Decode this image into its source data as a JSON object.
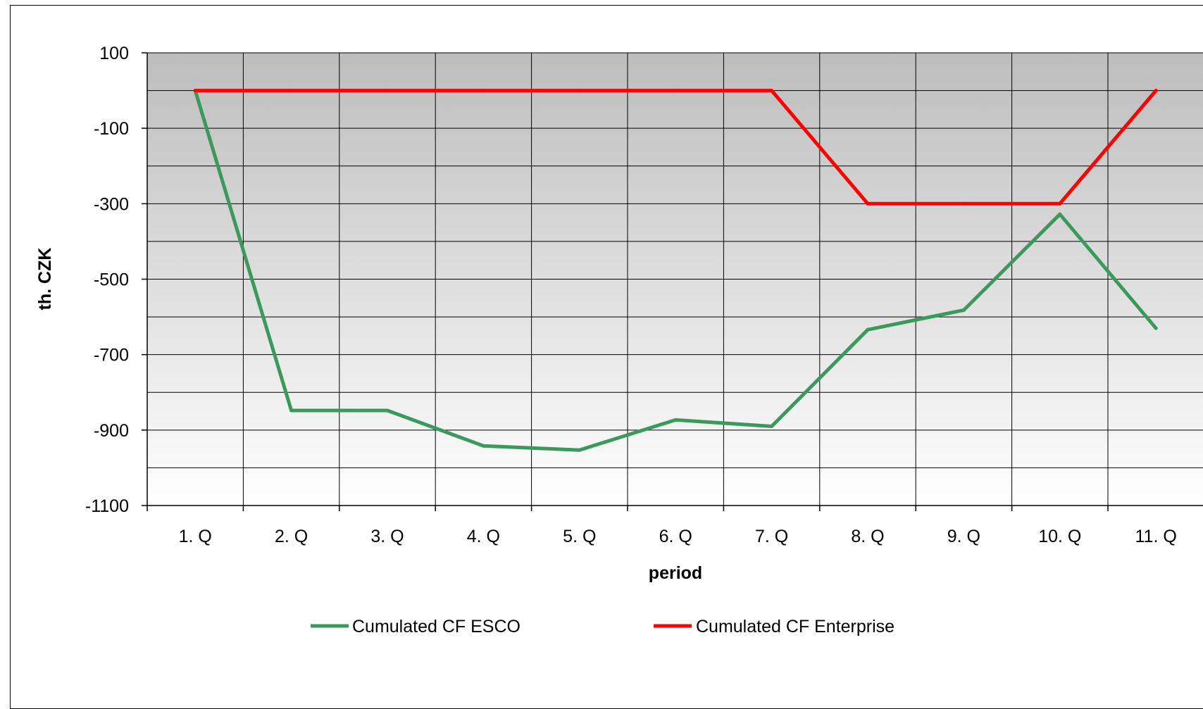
{
  "chart_data": {
    "type": "line",
    "title": "",
    "xlabel": "period",
    "ylabel": "th. CZK",
    "categories": [
      "1. Q",
      "2. Q",
      "3. Q",
      "4. Q",
      "5. Q",
      "6. Q",
      "7. Q",
      "8. Q",
      "9. Q",
      "10. Q",
      "11. Q"
    ],
    "yticks": [
      100,
      -100,
      -300,
      -500,
      -700,
      -900,
      -1100
    ],
    "ytick_labels": [
      "100",
      "-100",
      "-300",
      "-500",
      "-700",
      "-900",
      "-1100"
    ],
    "ylim": [
      -1100,
      100
    ],
    "grid": true,
    "legend_position": "bottom",
    "series": [
      {
        "name": "Cumulated CF ESCO",
        "color": "#3a9a5b",
        "values": [
          0,
          -848,
          -848,
          -942,
          -953,
          -873,
          -890,
          -634,
          -582,
          -328,
          -630
        ]
      },
      {
        "name": "Cumulated CF Enterprise",
        "color": "#ff0000",
        "values": [
          0,
          0,
          0,
          0,
          0,
          0,
          0,
          -300,
          -300,
          -300,
          0
        ]
      }
    ],
    "plot_background": {
      "top_color": "#bdbdbd",
      "bottom_color": "#ffffff"
    }
  }
}
